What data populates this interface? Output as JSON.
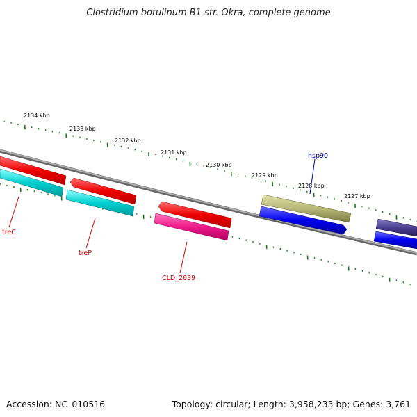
{
  "title": "Clostridium botulinum B1 str. Okra, complete genome",
  "accession": "Accession: NC_010516",
  "topology": "Topology: circular; Length: 3,958,233 bp; Genes: 3,761",
  "colors": {
    "backbone": "#8c8c8c",
    "tick": "#1f7a1f",
    "label_red": "#cc0000",
    "label_blue": "#000099"
  },
  "kbp_labels": [
    "2134 kbp",
    "2133 kbp",
    "2132 kbp",
    "2131 kbp",
    "2130 kbp",
    "2129 kbp",
    "2128 kbp",
    "2127 kbp"
  ],
  "genes": [
    {
      "name": "treC",
      "label": "treC",
      "color": "#e60000"
    },
    {
      "name": "treP",
      "label": "treP",
      "color": "#00c8c8"
    },
    {
      "name": "CLD_2639",
      "label": "CLD_2639",
      "color": "#e60073"
    },
    {
      "name": "hsp90",
      "label": "hsp90",
      "color": "#b0b070"
    }
  ]
}
